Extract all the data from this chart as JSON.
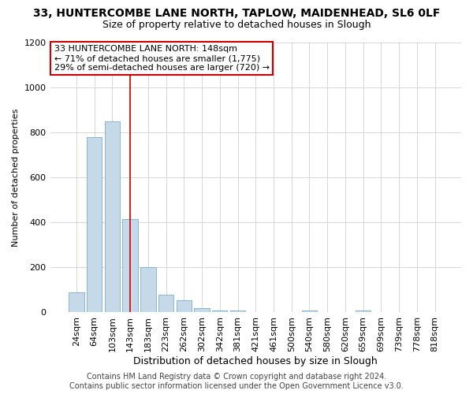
{
  "title": "33, HUNTERCOMBE LANE NORTH, TAPLOW, MAIDENHEAD, SL6 0LF",
  "subtitle": "Size of property relative to detached houses in Slough",
  "xlabel": "Distribution of detached houses by size in Slough",
  "ylabel": "Number of detached properties",
  "categories": [
    "24sqm",
    "64sqm",
    "103sqm",
    "143sqm",
    "183sqm",
    "223sqm",
    "262sqm",
    "302sqm",
    "342sqm",
    "381sqm",
    "421sqm",
    "461sqm",
    "500sqm",
    "540sqm",
    "580sqm",
    "620sqm",
    "659sqm",
    "699sqm",
    "739sqm",
    "778sqm",
    "818sqm"
  ],
  "values": [
    90,
    780,
    850,
    415,
    200,
    80,
    55,
    20,
    10,
    10,
    0,
    0,
    0,
    10,
    0,
    0,
    10,
    0,
    0,
    0,
    0
  ],
  "bar_color": "#c5d9e8",
  "bar_edge_color": "#7aadcb",
  "highlight_bar_index": 3,
  "highlight_line_color": "#cc0000",
  "ylim": [
    0,
    1200
  ],
  "yticks": [
    0,
    200,
    400,
    600,
    800,
    1000,
    1200
  ],
  "annotation_line1": "33 HUNTERCOMBE LANE NORTH: 148sqm",
  "annotation_line2": "← 71% of detached houses are smaller (1,775)",
  "annotation_line3": "29% of semi-detached houses are larger (720) →",
  "annotation_box_color": "#ffffff",
  "annotation_box_edge_color": "#cc0000",
  "footnote": "Contains HM Land Registry data © Crown copyright and database right 2024.\nContains public sector information licensed under the Open Government Licence v3.0.",
  "title_fontsize": 10,
  "subtitle_fontsize": 9,
  "annotation_fontsize": 8,
  "xlabel_fontsize": 9,
  "ylabel_fontsize": 8,
  "tick_fontsize": 8,
  "footnote_fontsize": 7,
  "background_color": "#ffffff",
  "grid_color": "#d0d0d0"
}
